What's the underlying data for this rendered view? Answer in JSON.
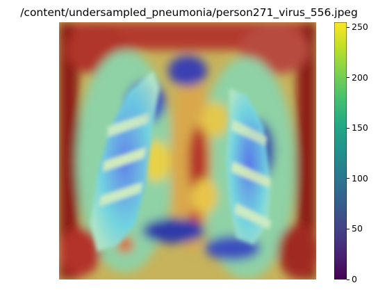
{
  "chart_data": {
    "type": "heatmap",
    "title": "/content/undersampled_pneumonia/person271_virus_556.jpeg",
    "colorbar": {
      "colormap": "viridis",
      "range": [
        0,
        255
      ],
      "ticks": [
        0,
        50,
        100,
        150,
        200,
        250
      ]
    },
    "overlay_colormap": "jet",
    "axes_visible": false
  }
}
